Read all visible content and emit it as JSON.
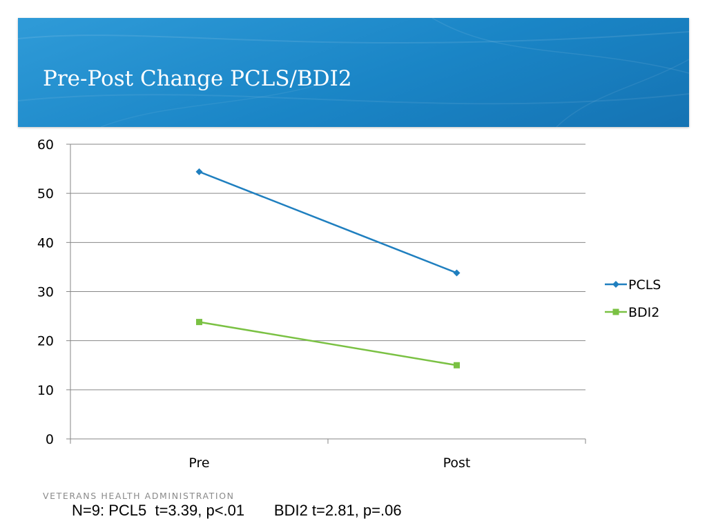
{
  "slide": {
    "title": "Pre-Post Change PCLS/BDI2",
    "footer_org": "VETERANS HEALTH ADMINISTRATION",
    "footnote": "N=9: PCL5  t=3.39, p<.01       BDI2 t=2.81, p=.06"
  },
  "colors": {
    "header": "#1a85c6",
    "pcls": "#1f7fbf",
    "bdi2": "#7ac143",
    "grid": "#868686"
  },
  "chart_data": {
    "type": "line",
    "categories": [
      "Pre",
      "Post"
    ],
    "series": [
      {
        "name": "PCLS",
        "values": [
          54.4,
          33.8
        ],
        "marker": "diamond",
        "color": "#1f7fbf"
      },
      {
        "name": "BDI2",
        "values": [
          23.8,
          15.0
        ],
        "marker": "square",
        "color": "#7ac143"
      }
    ],
    "ylim": [
      0,
      60
    ],
    "yticks": [
      0,
      10,
      20,
      30,
      40,
      50,
      60
    ],
    "grid": true,
    "legend_position": "right"
  }
}
